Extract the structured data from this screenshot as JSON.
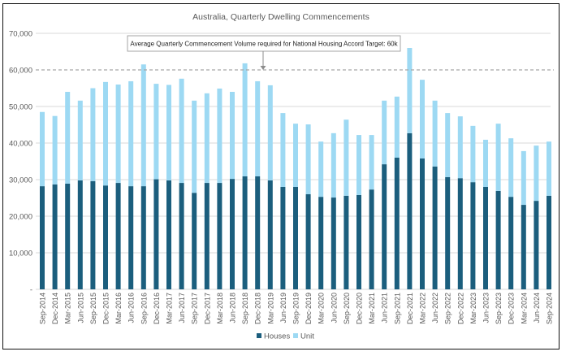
{
  "chart_data": {
    "type": "bar",
    "stacked": true,
    "title": "Australia, Quarterly Dwelling Commencements",
    "xlabel": "",
    "ylabel": "",
    "ylim": [
      0,
      70000
    ],
    "yticks": [
      0,
      10000,
      20000,
      30000,
      40000,
      50000,
      60000,
      70000
    ],
    "ytick_labels": [
      "-",
      "10,000",
      "20,000",
      "30,000",
      "40,000",
      "50,000",
      "60,000",
      "70,000"
    ],
    "grid": true,
    "legend_position": "bottom-center",
    "categories": [
      "Sep-2014",
      "Dec-2014",
      "Mar-2015",
      "Jun-2015",
      "Sep-2015",
      "Dec-2015",
      "Mar-2016",
      "Jun-2016",
      "Sep-2016",
      "Dec-2016",
      "Mar-2017",
      "Jun-2017",
      "Sep-2017",
      "Dec-2017",
      "Mar-2018",
      "Jun-2018",
      "Sep-2018",
      "Dec-2018",
      "Mar-2019",
      "Jun-2019",
      "Sep-2019",
      "Dec-2019",
      "Mar-2020",
      "Jun-2020",
      "Sep-2020",
      "Dec-2020",
      "Mar-2021",
      "Jun-2021",
      "Sep-2021",
      "Dec-2021",
      "Mar-2022",
      "Jun-2022",
      "Sep-2022",
      "Dec-2022",
      "Mar-2023",
      "Jun-2023",
      "Sep-2023",
      "Dec-2023",
      "Mar-2024",
      "Jun-2024",
      "Sep-2024"
    ],
    "series": [
      {
        "name": "Houses",
        "color": "#1b5e7d",
        "values": [
          28200,
          28700,
          28900,
          29800,
          29600,
          28400,
          29100,
          28200,
          28200,
          30100,
          29800,
          29100,
          26400,
          29100,
          29100,
          30200,
          30900,
          30900,
          29800,
          28000,
          28000,
          26000,
          25300,
          25100,
          25600,
          25800,
          27300,
          34200,
          36000,
          42700,
          35800,
          33600,
          30700,
          30400,
          29300,
          28000,
          26900,
          25300,
          23100,
          24200,
          25600
        ]
      },
      {
        "name": "Unit",
        "color": "#9dd9f3",
        "values": [
          20300,
          18700,
          25100,
          21800,
          25400,
          28300,
          26900,
          28700,
          33300,
          26100,
          26100,
          28500,
          25200,
          24500,
          25800,
          23800,
          30900,
          26000,
          26000,
          20200,
          17300,
          19100,
          15100,
          17600,
          20800,
          16400,
          14900,
          17400,
          16700,
          23300,
          21500,
          18000,
          17500,
          16900,
          15400,
          12900,
          18400,
          16000,
          14700,
          15100,
          14800
        ]
      }
    ],
    "reference_line": {
      "value": 60000,
      "style": "dashed",
      "color": "#a6a6a6",
      "annotation": "Average Quarterly Commencement Volume required for National Housing Accord Target: 60k"
    }
  }
}
